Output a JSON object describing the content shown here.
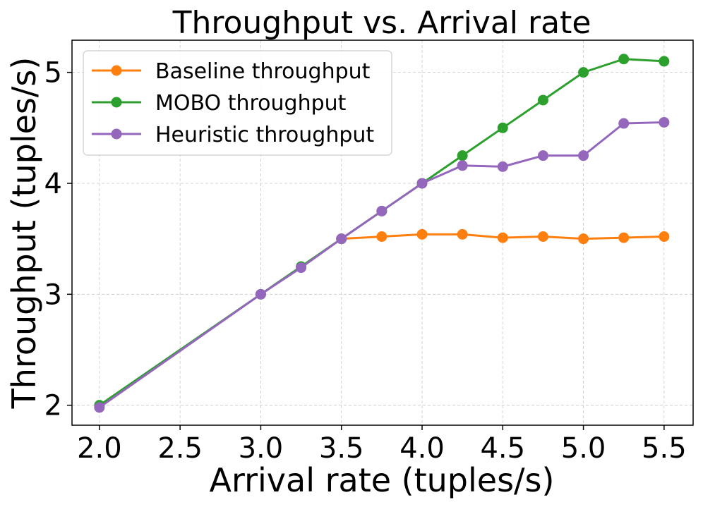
{
  "chart_data": {
    "type": "line",
    "title": "Throughput vs. Arrival rate",
    "xlabel": "Arrival rate (tuples/s)",
    "ylabel": "Throughput (tuples/s)",
    "xlim": [
      1.83,
      5.68
    ],
    "ylim": [
      1.82,
      5.29
    ],
    "xticks": [
      2.0,
      2.5,
      3.0,
      3.5,
      4.0,
      4.5,
      5.0,
      5.5
    ],
    "xtick_labels": [
      "2.0",
      "2.5",
      "3.0",
      "3.5",
      "4.0",
      "4.5",
      "5.0",
      "5.5"
    ],
    "yticks": [
      2,
      3,
      4,
      5
    ],
    "ytick_labels": [
      "2",
      "3",
      "4",
      "5"
    ],
    "grid": true,
    "legend_position": "top-left",
    "series": [
      {
        "name": "Baseline throughput",
        "color": "#ff7f0e",
        "x": [
          3.5,
          3.75,
          4.0,
          4.25,
          4.5,
          4.75,
          5.0,
          5.25,
          5.5
        ],
        "y": [
          3.5,
          3.52,
          3.54,
          3.54,
          3.51,
          3.52,
          3.5,
          3.51,
          3.52
        ]
      },
      {
        "name": "MOBO throughput",
        "color": "#2ca02c",
        "x": [
          2.0,
          3.0,
          3.25,
          3.5,
          3.75,
          4.0,
          4.25,
          4.5,
          4.75,
          5.0,
          5.25,
          5.5
        ],
        "y": [
          2.0,
          3.0,
          3.25,
          3.5,
          3.75,
          4.0,
          4.25,
          4.5,
          4.75,
          5.0,
          5.12,
          5.1
        ]
      },
      {
        "name": "Heuristic throughput",
        "color": "#9467bd",
        "x": [
          2.0,
          3.0,
          3.25,
          3.5,
          3.75,
          4.0,
          4.25,
          4.5,
          4.75,
          5.0,
          5.25,
          5.5
        ],
        "y": [
          1.98,
          3.0,
          3.24,
          3.5,
          3.75,
          4.0,
          4.16,
          4.15,
          4.25,
          4.25,
          4.54,
          4.55
        ]
      }
    ]
  }
}
